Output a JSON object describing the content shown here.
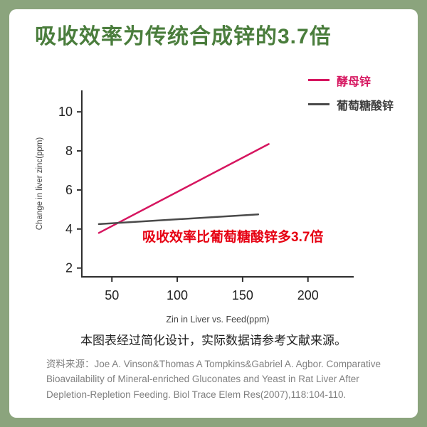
{
  "header": {
    "title": "吸收效率为传统合成锌的3.7倍"
  },
  "chart_data": {
    "type": "line",
    "title": "",
    "xlabel": "Zin in Liver vs. Feed(ppm)",
    "ylabel": "Change in liver zinc(ppm)",
    "x_ticks": [
      50,
      100,
      150,
      200
    ],
    "y_ticks": [
      2,
      4,
      6,
      8,
      10
    ],
    "xlim": [
      27,
      235
    ],
    "ylim": [
      1.55,
      11.1
    ],
    "grid": false,
    "legend_position": "top-right",
    "axis_color": "#2f2f2f",
    "series": [
      {
        "name": "酵母锌",
        "color": "#d6155f",
        "label_color": "#d6155f",
        "points": [
          [
            40,
            3.8
          ],
          [
            170,
            8.35
          ]
        ]
      },
      {
        "name": "葡萄糖酸锌",
        "color": "#4a4a4a",
        "label_color": "#3f3f3f",
        "points": [
          [
            40,
            4.25
          ],
          [
            162,
            4.75
          ]
        ]
      }
    ],
    "annotation": {
      "text": "吸收效率比葡萄糖酸锌多3.7倍",
      "color": "#e60012"
    }
  },
  "footer": {
    "note": "本图表经过简化设计，实际数据请参考文献来源。",
    "source_label": "资料来源：",
    "source_text": "Joe A. Vinson&Thomas A Tompkins&Gabriel A. Agbor. Comparative Bioavailability of Mineral-enriched Gluconates and Yeast in Rat Liver After Depletion-Repletion Feeding. Biol Trace Elem Res(2007),118:104-110."
  },
  "colors": {
    "background": "#8BA47D",
    "card": "#ffffff",
    "heading": "#4a7d3c",
    "yeast_line": "#d6155f",
    "gluconate_line": "#4a4a4a",
    "annotation_red": "#e60012"
  }
}
